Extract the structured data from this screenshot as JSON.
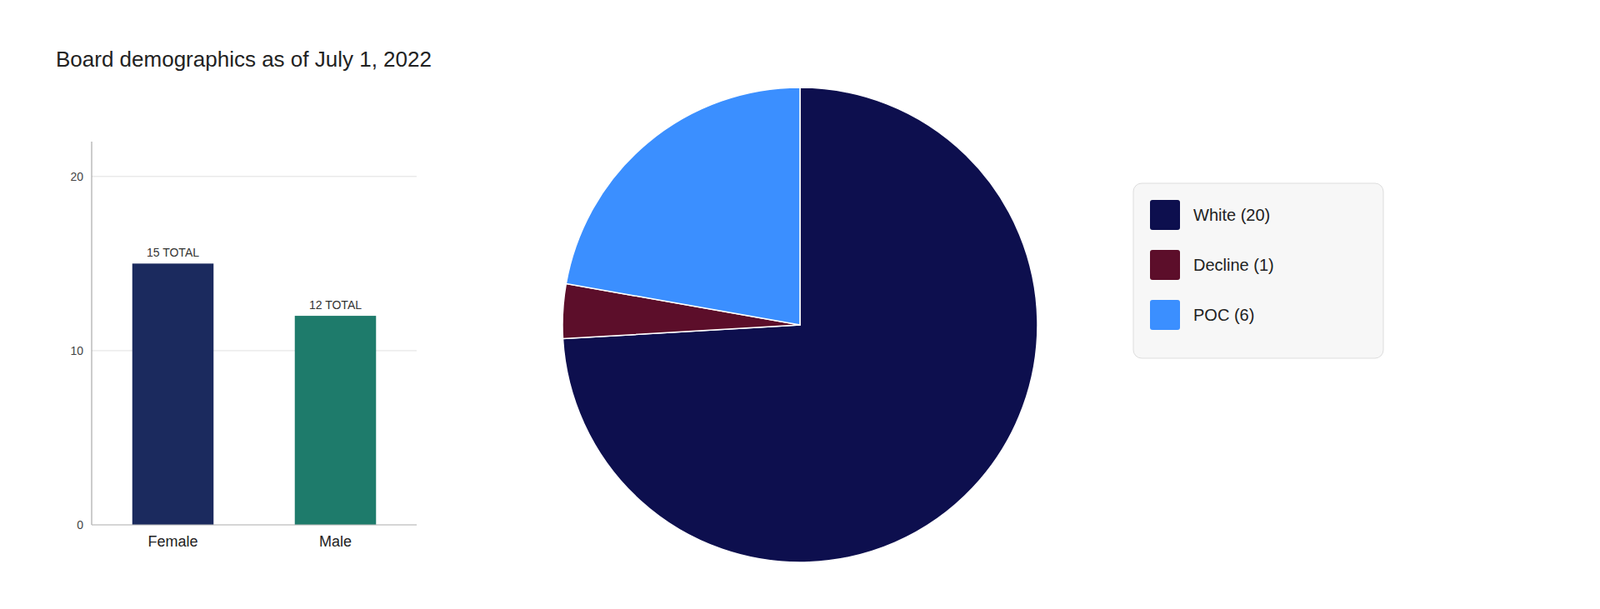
{
  "chart_data": [
    {
      "type": "bar",
      "title": "Board demographics as of July 1, 2022",
      "categories": [
        "Female",
        "Male"
      ],
      "values": [
        15,
        12
      ],
      "value_labels": [
        "15 TOTAL",
        "12 TOTAL"
      ],
      "data_labels": true,
      "colors": [
        "#1B2A5E",
        "#1E7B6B"
      ],
      "ylim": [
        0,
        22
      ],
      "yticks": [
        0,
        10,
        20
      ],
      "grid": true
    },
    {
      "type": "pie",
      "categories": [
        "White (20)",
        "Decline (1)",
        "POC (6)"
      ],
      "values": [
        20,
        1,
        6
      ],
      "colors": [
        "#0D0F4E",
        "#5C0E2A",
        "#3B8FFF"
      ],
      "legend": "right"
    }
  ]
}
